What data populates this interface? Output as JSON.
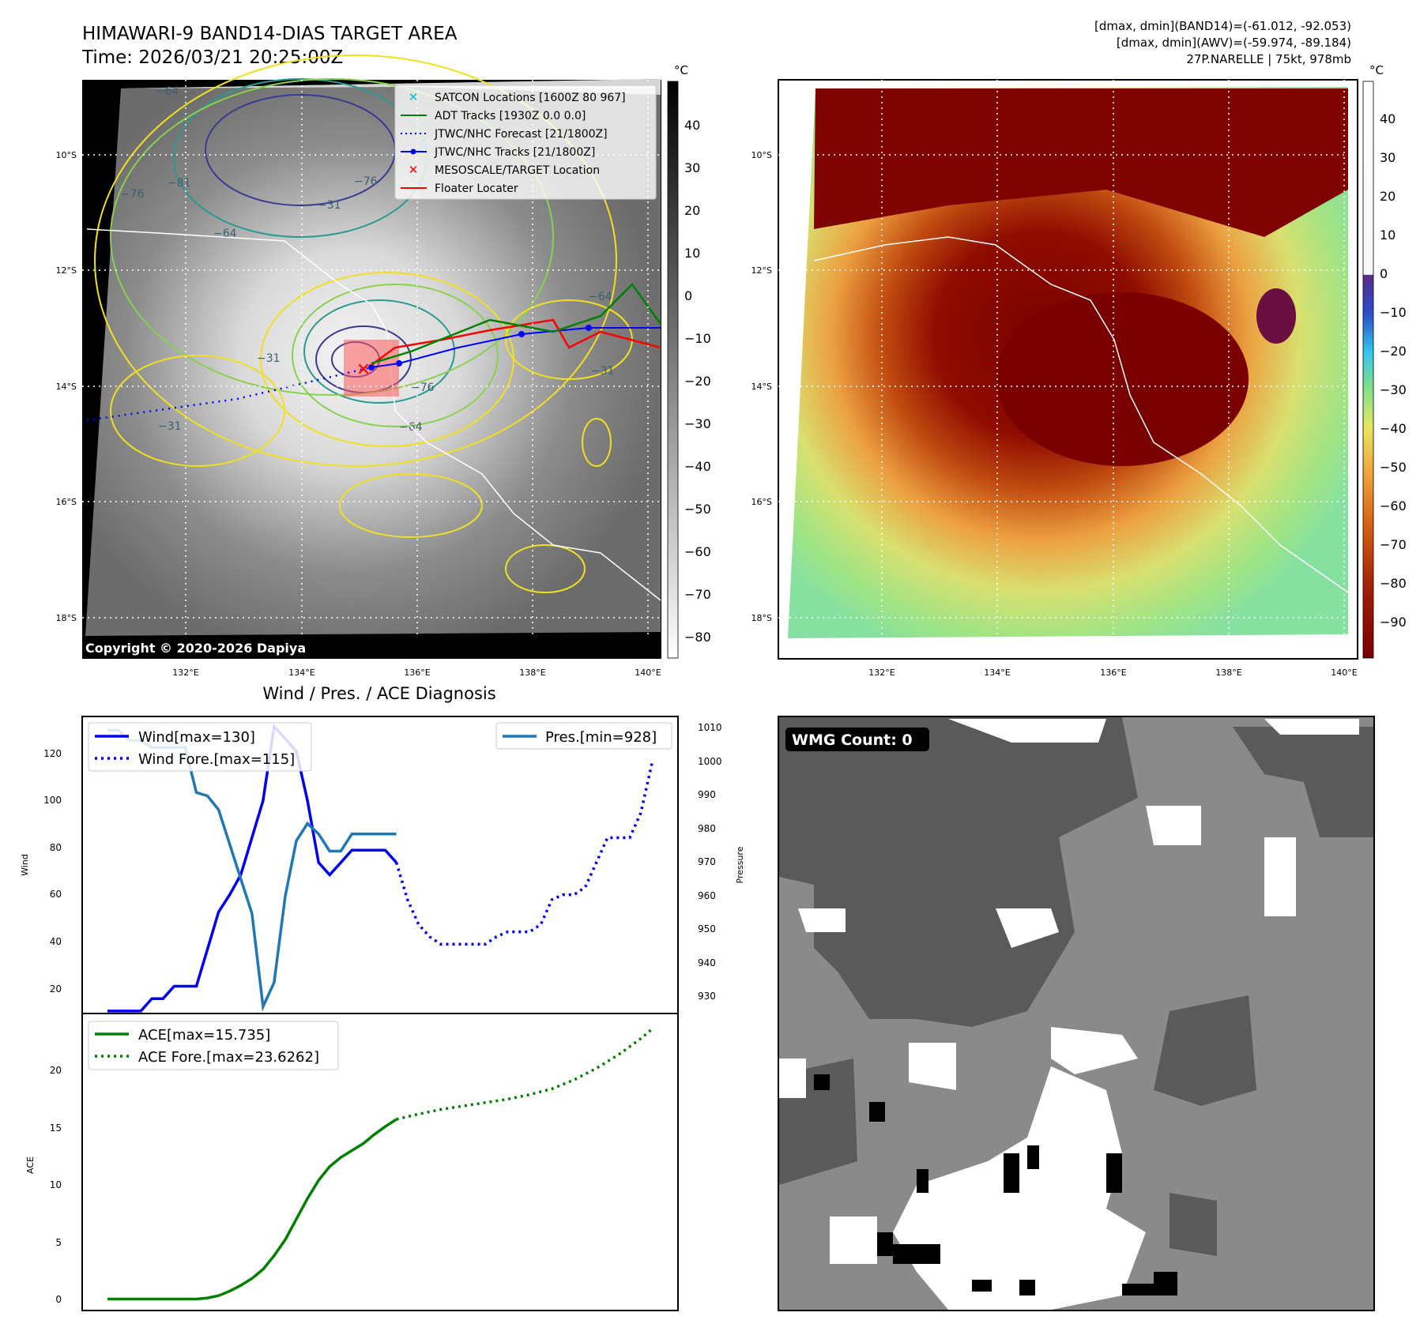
{
  "header": {
    "title_line1": "HIMAWARI-9 BAND14-DIAS TARGET AREA",
    "title_line2": "Time: 2026/03/21 20:25:00Z",
    "info_line1": "[dmax, dmin](BAND14)=(-61.012, -92.053)",
    "info_line2": "[dmax, dmin](AWV)=(-59.974, -89.184)",
    "info_line3": "27P.NARELLE | 75kt, 978mb"
  },
  "map_axes": {
    "lat_labels": [
      "10°S",
      "12°S",
      "14°S",
      "16°S",
      "18°S"
    ],
    "lon_labels": [
      "132°E",
      "134°E",
      "136°E",
      "138°E",
      "140°E"
    ]
  },
  "left_map": {
    "copyright": "Copyright © 2020-2026 Dapiya",
    "colorbar_unit": "°C",
    "colorbar_ticks": [
      "40",
      "30",
      "20",
      "10",
      "0",
      "−10",
      "−20",
      "−30",
      "−40",
      "−50",
      "−60",
      "−70",
      "−80"
    ],
    "contour_labels": [
      "−64",
      "−76",
      "−81",
      "−64",
      "−76",
      "−31",
      "−31",
      "−31",
      "−31",
      "−64",
      "−76",
      "−64"
    ],
    "legend": [
      {
        "label": "SATCON Locations [1600Z 80 967]",
        "color": "#00bcd4"
      },
      {
        "label": "ADT Tracks [1930Z 0.0 0.0]",
        "color": "#008000"
      },
      {
        "label": "JTWC/NHC Forecast [21/1800Z]",
        "color": "#0000ff"
      },
      {
        "label": "JTWC/NHC Tracks [21/1800Z]",
        "color": "#0000ff"
      },
      {
        "label": "MESOSCALE/TARGET Location",
        "color": "#ff0000"
      },
      {
        "label": "Floater Locater",
        "color": "#ff0000"
      }
    ]
  },
  "right_map": {
    "colorbar_unit": "°C",
    "colorbar_ticks": [
      "40",
      "30",
      "20",
      "10",
      "0",
      "−10",
      "−20",
      "−30",
      "−40",
      "−50",
      "−60",
      "−70",
      "−80",
      "−90"
    ]
  },
  "wind_panel": {
    "title": "Wind / Pres. / ACE Diagnosis",
    "ylabel_left": "Wind",
    "ylabel_right": "Pressure",
    "left_ticks": [
      "120",
      "100",
      "80",
      "60",
      "40",
      "20"
    ],
    "right_ticks": [
      "1010",
      "1000",
      "990",
      "980",
      "970",
      "960",
      "950",
      "940",
      "930"
    ],
    "legend_wind": "Wind[max=130]",
    "legend_wind_fore": "Wind Fore.[max=115]",
    "legend_pres": "Pres.[min=928]"
  },
  "ace_panel": {
    "ylabel": "ACE",
    "ticks": [
      "20",
      "15",
      "10",
      "5",
      "0"
    ],
    "legend_ace": "ACE[max=15.735]",
    "legend_ace_fore": "ACE Fore.[max=23.6262]"
  },
  "wmg_panel": {
    "label": "WMG Count: 0"
  },
  "chart_data": [
    {
      "type": "line",
      "title": "Wind / Pres. / ACE Diagnosis",
      "ylabel": "Wind",
      "ylim": [
        14,
        134
      ],
      "x": [
        0,
        1,
        2,
        3,
        4,
        5,
        6,
        7,
        8,
        9,
        10,
        11,
        12,
        13,
        14,
        15,
        16,
        17,
        18,
        19,
        20,
        21,
        22,
        23,
        24,
        25,
        26,
        27,
        28,
        29,
        30,
        31,
        32,
        33,
        34,
        35,
        36,
        37,
        38,
        39,
        40,
        41,
        42,
        43,
        44,
        45,
        46,
        47,
        48,
        49
      ],
      "series": [
        {
          "name": "Wind[max=130]",
          "color": "#0000ee",
          "style": "solid",
          "x": [
            0,
            1,
            2,
            3,
            4,
            5,
            6,
            7,
            8,
            9,
            10,
            11,
            12,
            13,
            14,
            15,
            16,
            17,
            18,
            19,
            20,
            21,
            22,
            23,
            24,
            25,
            26
          ],
          "values": [
            15,
            15,
            15,
            15,
            20,
            20,
            25,
            25,
            25,
            40,
            55,
            62,
            70,
            85,
            100,
            130,
            125,
            120,
            100,
            75,
            70,
            75,
            80,
            80,
            80,
            80,
            75
          ]
        },
        {
          "name": "Wind Fore.[max=115]",
          "color": "#0000ee",
          "style": "dotted",
          "x": [
            26,
            27,
            28,
            29,
            30,
            31,
            32,
            33,
            34,
            35,
            36,
            37,
            38,
            39,
            40,
            41,
            42,
            43,
            44,
            45,
            46,
            47,
            48,
            49
          ],
          "values": [
            75,
            60,
            50,
            45,
            42,
            42,
            42,
            42,
            42,
            45,
            47,
            47,
            47,
            50,
            60,
            62,
            62,
            65,
            75,
            85,
            85,
            85,
            95,
            115
          ]
        }
      ]
    },
    {
      "type": "line",
      "ylabel": "Pressure",
      "ylim": [
        926,
        1012
      ],
      "series": [
        {
          "name": "Pres.[min=928]",
          "color": "#1f77b4",
          "style": "solid",
          "x": [
            0,
            1,
            2,
            3,
            4,
            5,
            6,
            7,
            8,
            9,
            10,
            11,
            12,
            13,
            14,
            15,
            16,
            17,
            18,
            19,
            20,
            21,
            22,
            23,
            24,
            25,
            26
          ],
          "values": [
            1008,
            1008,
            1005,
            1005,
            1003,
            1003,
            1003,
            1003,
            990,
            989,
            985,
            975,
            965,
            955,
            928,
            935,
            960,
            976,
            981,
            978,
            973,
            973,
            978,
            978,
            978,
            978,
            978
          ]
        }
      ]
    },
    {
      "type": "line",
      "ylabel": "ACE",
      "ylim": [
        -1,
        25
      ],
      "series": [
        {
          "name": "ACE[max=15.735]",
          "color": "#008000",
          "style": "solid",
          "x": [
            0,
            2,
            4,
            6,
            8,
            9,
            10,
            11,
            12,
            13,
            14,
            15,
            16,
            17,
            18,
            19,
            20,
            21,
            22,
            23,
            24,
            25,
            26
          ],
          "values": [
            0,
            0,
            0,
            0,
            0,
            0.1,
            0.3,
            0.7,
            1.2,
            1.8,
            2.6,
            3.8,
            5.2,
            7,
            8.8,
            10.4,
            11.6,
            12.4,
            13,
            13.6,
            14.4,
            15.1,
            15.735
          ]
        },
        {
          "name": "ACE Fore.[max=23.6262]",
          "color": "#008000",
          "style": "dotted",
          "x": [
            26,
            28,
            30,
            32,
            34,
            36,
            38,
            40,
            42,
            44,
            46,
            48,
            49
          ],
          "values": [
            15.735,
            16.2,
            16.6,
            16.9,
            17.2,
            17.5,
            17.9,
            18.4,
            19.2,
            20.2,
            21.4,
            22.8,
            23.6262
          ]
        }
      ]
    }
  ]
}
